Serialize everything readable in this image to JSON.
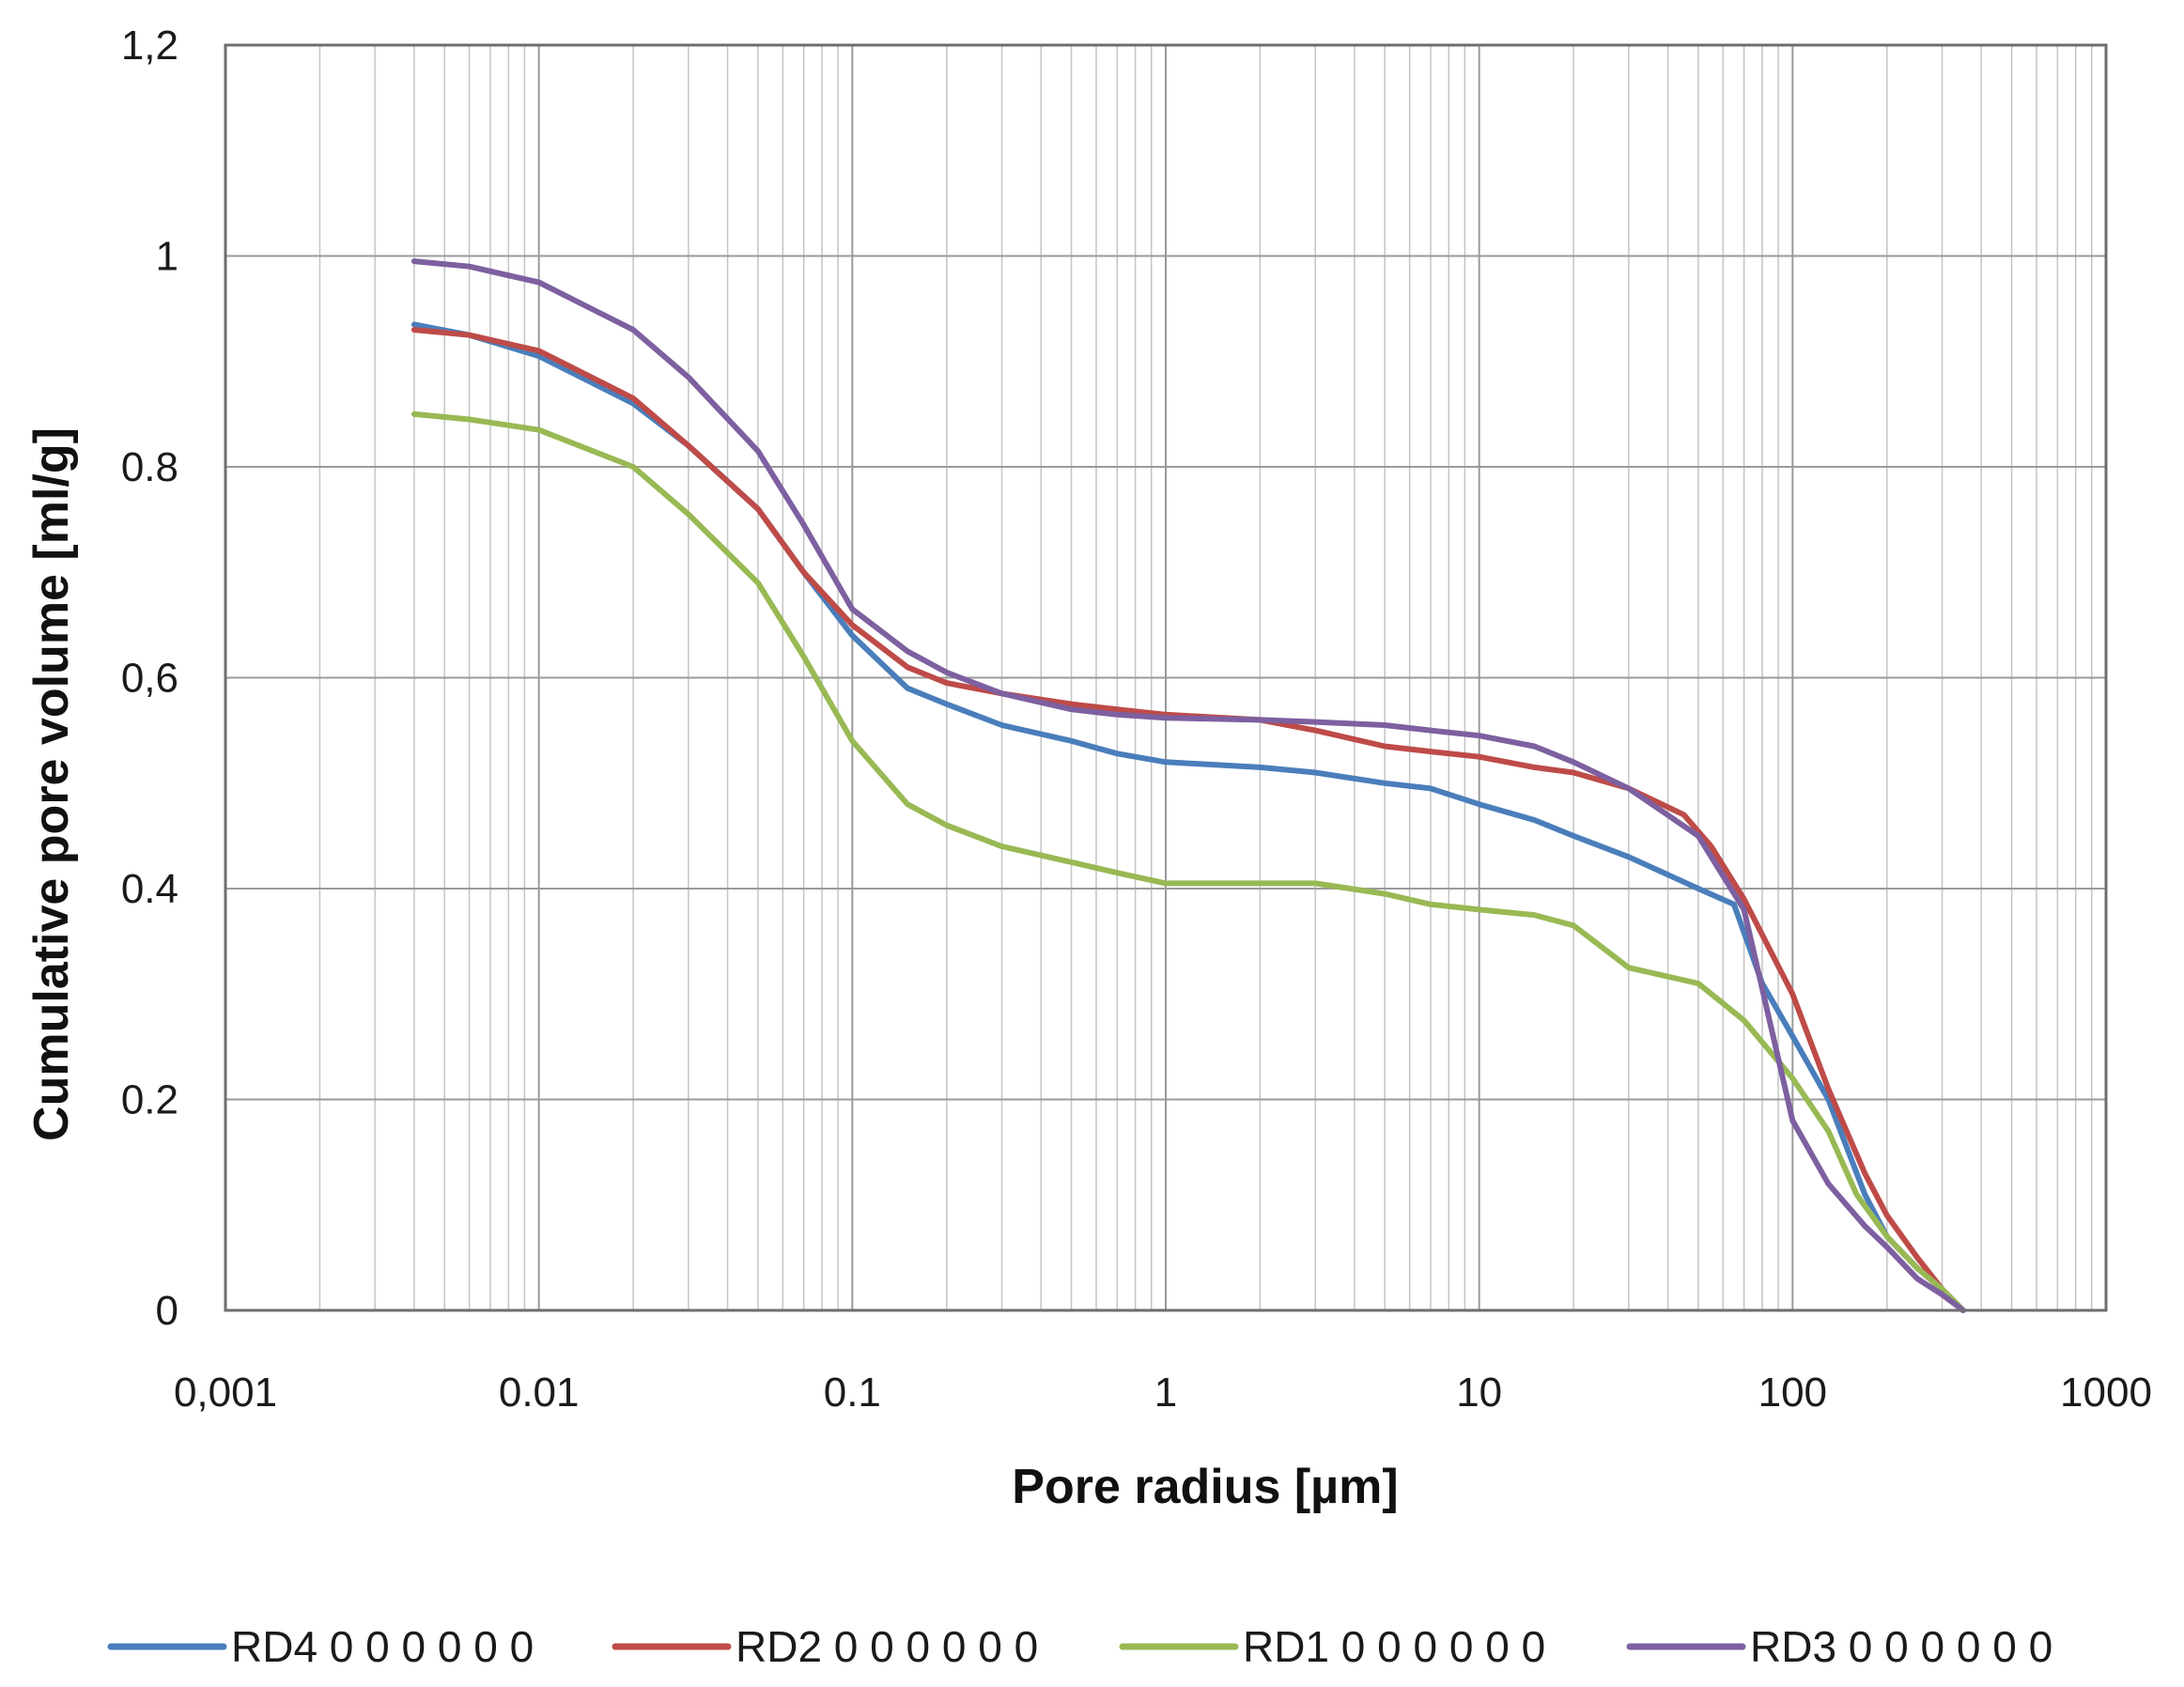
{
  "chart_data": {
    "type": "line",
    "xscale": "log",
    "xlim": [
      0.001,
      1000
    ],
    "ylim": [
      0,
      1.2
    ],
    "grid": true,
    "legend_position": "bottom",
    "xlabel": "Pore radius  [µm]",
    "ylabel": "Cumulative pore volume [ml/g]",
    "x_tick_labels": [
      "0,001",
      "0.01",
      "0.1",
      "1",
      "10",
      "100",
      "1000"
    ],
    "y_tick_labels": [
      "0",
      "0.2",
      "0.4",
      "0,6",
      "0.8",
      "1",
      "1,2"
    ],
    "series": [
      {
        "name": "RD4 0 0 0 0 0 0",
        "color": "#4a7ebb",
        "points": [
          [
            0.004,
            0.935
          ],
          [
            0.006,
            0.925
          ],
          [
            0.01,
            0.905
          ],
          [
            0.02,
            0.86
          ],
          [
            0.03,
            0.82
          ],
          [
            0.05,
            0.76
          ],
          [
            0.07,
            0.7
          ],
          [
            0.1,
            0.64
          ],
          [
            0.15,
            0.59
          ],
          [
            0.2,
            0.575
          ],
          [
            0.3,
            0.555
          ],
          [
            0.5,
            0.54
          ],
          [
            0.7,
            0.528
          ],
          [
            1,
            0.52
          ],
          [
            2,
            0.515
          ],
          [
            3,
            0.51
          ],
          [
            5,
            0.5
          ],
          [
            7,
            0.495
          ],
          [
            10,
            0.48
          ],
          [
            15,
            0.465
          ],
          [
            20,
            0.45
          ],
          [
            30,
            0.43
          ],
          [
            50,
            0.4
          ],
          [
            65,
            0.385
          ],
          [
            80,
            0.31
          ],
          [
            100,
            0.26
          ],
          [
            130,
            0.2
          ],
          [
            170,
            0.11
          ],
          [
            200,
            0.07
          ],
          [
            250,
            0.04
          ],
          [
            300,
            0.02
          ],
          [
            350,
            0.0
          ]
        ]
      },
      {
        "name": "RD2 0 0 0 0 0 0",
        "color": "#be4b48",
        "points": [
          [
            0.004,
            0.93
          ],
          [
            0.006,
            0.925
          ],
          [
            0.01,
            0.91
          ],
          [
            0.02,
            0.865
          ],
          [
            0.03,
            0.82
          ],
          [
            0.05,
            0.76
          ],
          [
            0.07,
            0.7
          ],
          [
            0.1,
            0.65
          ],
          [
            0.15,
            0.61
          ],
          [
            0.2,
            0.595
          ],
          [
            0.3,
            0.585
          ],
          [
            0.5,
            0.575
          ],
          [
            0.7,
            0.57
          ],
          [
            1,
            0.565
          ],
          [
            2,
            0.56
          ],
          [
            3,
            0.55
          ],
          [
            5,
            0.535
          ],
          [
            7,
            0.53
          ],
          [
            10,
            0.525
          ],
          [
            15,
            0.515
          ],
          [
            20,
            0.51
          ],
          [
            30,
            0.495
          ],
          [
            45,
            0.47
          ],
          [
            55,
            0.44
          ],
          [
            70,
            0.39
          ],
          [
            100,
            0.3
          ],
          [
            130,
            0.21
          ],
          [
            170,
            0.13
          ],
          [
            200,
            0.09
          ],
          [
            250,
            0.05
          ],
          [
            300,
            0.02
          ],
          [
            350,
            0.0
          ]
        ]
      },
      {
        "name": "RD1 0 0 0 0 0 0",
        "color": "#98b954",
        "points": [
          [
            0.004,
            0.85
          ],
          [
            0.006,
            0.845
          ],
          [
            0.01,
            0.835
          ],
          [
            0.02,
            0.8
          ],
          [
            0.03,
            0.755
          ],
          [
            0.05,
            0.69
          ],
          [
            0.07,
            0.62
          ],
          [
            0.1,
            0.54
          ],
          [
            0.15,
            0.48
          ],
          [
            0.2,
            0.46
          ],
          [
            0.3,
            0.44
          ],
          [
            0.5,
            0.425
          ],
          [
            0.7,
            0.415
          ],
          [
            1,
            0.405
          ],
          [
            2,
            0.405
          ],
          [
            3,
            0.405
          ],
          [
            5,
            0.395
          ],
          [
            7,
            0.385
          ],
          [
            10,
            0.38
          ],
          [
            15,
            0.375
          ],
          [
            20,
            0.365
          ],
          [
            30,
            0.325
          ],
          [
            50,
            0.31
          ],
          [
            70,
            0.275
          ],
          [
            100,
            0.22
          ],
          [
            130,
            0.17
          ],
          [
            160,
            0.11
          ],
          [
            200,
            0.07
          ],
          [
            250,
            0.04
          ],
          [
            300,
            0.02
          ],
          [
            350,
            0.0
          ]
        ]
      },
      {
        "name": "RD3 0 0 0 0 0 0",
        "color": "#7d60a0",
        "points": [
          [
            0.004,
            0.995
          ],
          [
            0.006,
            0.99
          ],
          [
            0.01,
            0.975
          ],
          [
            0.02,
            0.93
          ],
          [
            0.03,
            0.885
          ],
          [
            0.05,
            0.815
          ],
          [
            0.07,
            0.745
          ],
          [
            0.1,
            0.665
          ],
          [
            0.15,
            0.625
          ],
          [
            0.2,
            0.605
          ],
          [
            0.3,
            0.585
          ],
          [
            0.5,
            0.57
          ],
          [
            0.7,
            0.565
          ],
          [
            1,
            0.562
          ],
          [
            2,
            0.56
          ],
          [
            3,
            0.558
          ],
          [
            5,
            0.555
          ],
          [
            7,
            0.55
          ],
          [
            10,
            0.545
          ],
          [
            15,
            0.535
          ],
          [
            20,
            0.52
          ],
          [
            30,
            0.495
          ],
          [
            50,
            0.45
          ],
          [
            70,
            0.38
          ],
          [
            100,
            0.18
          ],
          [
            130,
            0.12
          ],
          [
            170,
            0.08
          ],
          [
            200,
            0.06
          ],
          [
            250,
            0.03
          ],
          [
            300,
            0.015
          ],
          [
            350,
            0.0
          ]
        ]
      }
    ]
  }
}
